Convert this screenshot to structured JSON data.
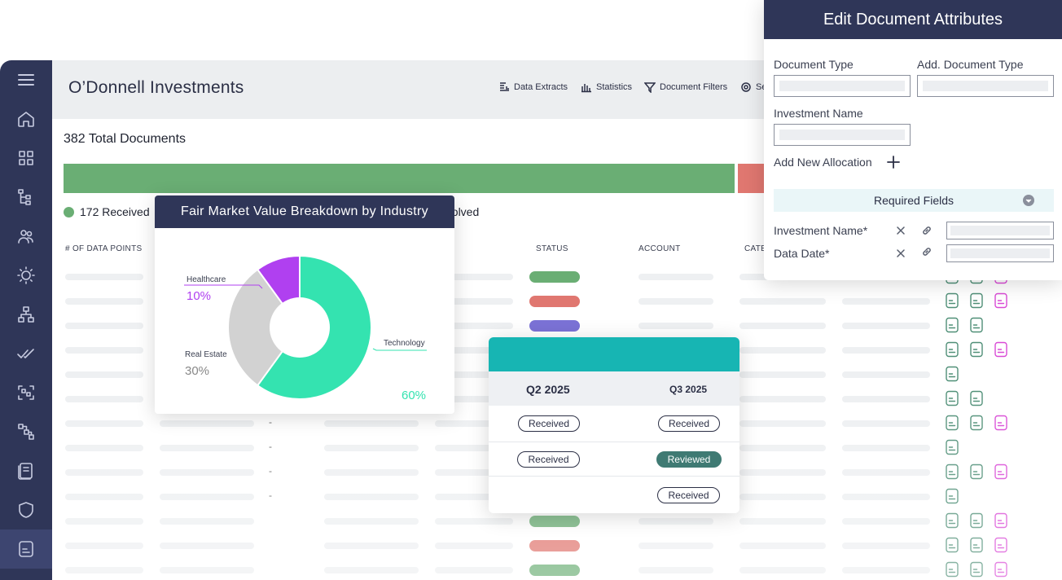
{
  "app": {
    "title": "O’Donnell Investments",
    "toolbar": {
      "data_extracts": "Data Extracts",
      "statistics": "Statistics",
      "document_filters": "Document Filters",
      "settings_partial": "Se"
    }
  },
  "sidebar": {
    "items": [
      "menu-icon",
      "home-icon",
      "grid-icon",
      "tree-icon",
      "users-icon",
      "sun-icon",
      "hierarchy-icon",
      "check-icon",
      "scan-icon",
      "flow-icon",
      "book-icon",
      "shield-icon",
      "document-icon"
    ]
  },
  "summary": {
    "total": "382 Total Documents",
    "received": "172 Received",
    "unresolved_partial": "esolved"
  },
  "table": {
    "headers": [
      "# OF DATA POINTS",
      "STATUS",
      "ACCOUNT",
      "CATE"
    ],
    "dash": "-"
  },
  "donut": {
    "title": "Fair Market Value Breakdown by Industry",
    "labels": {
      "healthcare": "Healthcare",
      "healthcare_pct": "10%",
      "real_estate": "Real Estate",
      "real_estate_pct": "30%",
      "technology": "Technology",
      "technology_pct": "60%"
    }
  },
  "chart_data": {
    "type": "pie",
    "title": "Fair Market Value Breakdown by Industry",
    "categories": [
      "Technology",
      "Real Estate",
      "Healthcare"
    ],
    "values": [
      60,
      30,
      10
    ],
    "colors": [
      "#34e3b0",
      "#d2d2d2",
      "#b040f0"
    ]
  },
  "quarters": {
    "col1": "Q2 2025",
    "col2": "Q3 2025",
    "rows": [
      {
        "q2": "Received",
        "q3": "Received"
      },
      {
        "q2": "Received",
        "q3": "Reviewed"
      },
      {
        "q2": "",
        "q3": "Received"
      }
    ]
  },
  "attributes": {
    "title": "Edit Document Attributes",
    "document_type": "Document Type",
    "add_document_type": "Add. Document Type",
    "investment_name": "Investment Name",
    "add_allocation": "Add New Allocation",
    "required_fields": "Required Fields",
    "req_investment_name": "Investment Name*",
    "req_data_date": "Data Date*"
  },
  "colors": {
    "navy": "#2f3658",
    "teal": "#17b5b3",
    "green": "#6aae74",
    "red": "#e07770",
    "purple": "#7b72d6",
    "reviewed": "#3f7a73"
  }
}
